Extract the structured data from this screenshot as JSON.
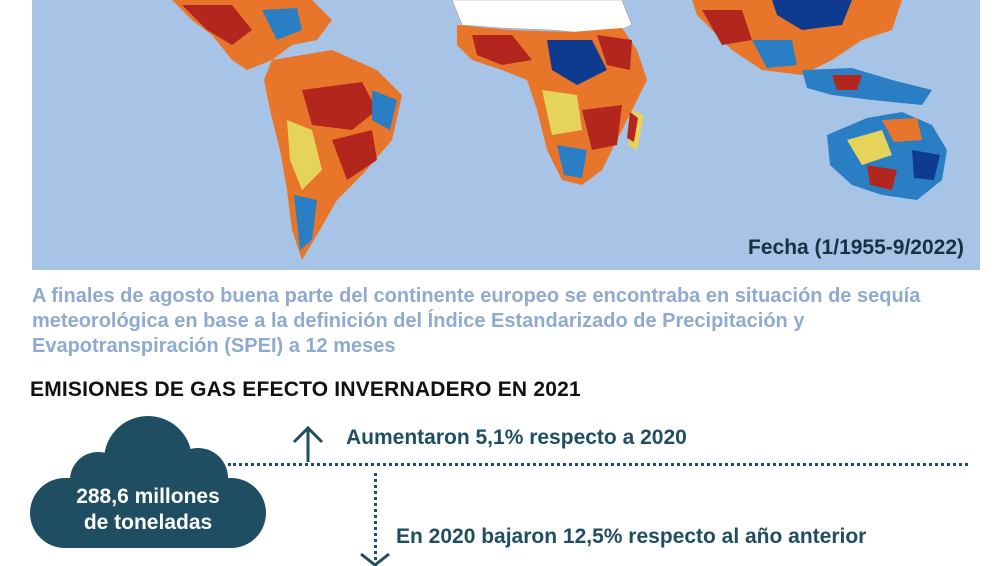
{
  "map": {
    "date_label": "Fecha (1/1955-9/2022)",
    "colors": {
      "ocean": "#a7c3e5",
      "dry": "#b3261e",
      "moderate": "#e8762a",
      "neutral": "#e6d35a",
      "wet": "#2a7fc4",
      "very_wet": "#0e3a8f"
    }
  },
  "caption": "A finales de agosto buena parte del continente europeo se encontraba en situación de sequía meteorológica en base a la definición del Índice Estandarizado de Precipitación y Evapotranspiración (SPEI) a 12 meses",
  "emissions": {
    "title": "EMISIONES DE GAS EFECTO INVERNADERO EN 2021",
    "amount_line1": "288,6 millones",
    "amount_line2": "de toneladas",
    "increase_text": "Aumentaron 5,1% respecto a 2020",
    "decrease_text": "En 2020 bajaron 12,5% respecto al año anterior",
    "accent_color": "#1f4e63"
  }
}
